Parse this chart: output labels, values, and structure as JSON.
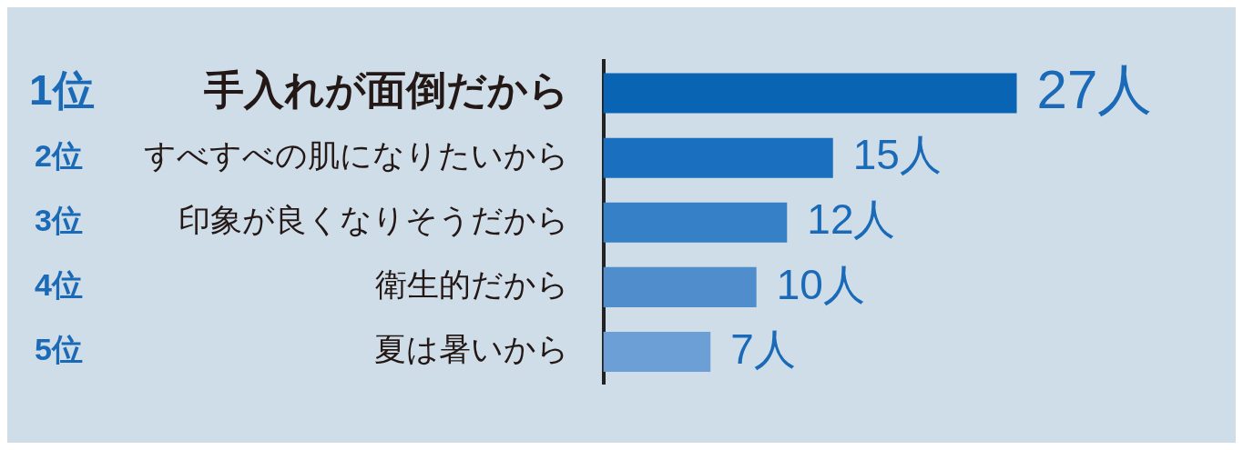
{
  "chart_data": {
    "type": "bar",
    "orientation": "horizontal",
    "categories": [
      "手入れが面倒だから",
      "すべすべの肌になりたいから",
      "印象が良くなりそうだから",
      "衛生的だから",
      "夏は暑いから"
    ],
    "values": [
      27,
      15,
      12,
      10,
      7
    ],
    "colors": [
      "#0a64b4",
      "#1a6fbe",
      "#3580c6",
      "#4f8dcc",
      "#6b9fd5"
    ],
    "value_labels": [
      "27人",
      "15人",
      "12人",
      "10人",
      "7人"
    ],
    "annotations": [
      "1位",
      "2位",
      "3位",
      "4位",
      "5位"
    ],
    "legend": false,
    "tick_labels": "y"
  }
}
